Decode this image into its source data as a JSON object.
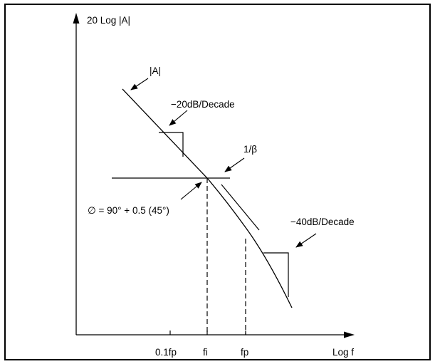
{
  "diagram": {
    "y_axis_label": "20 Log |A|",
    "x_axis_label": "Log f",
    "x_ticks": {
      "tenth_fp": "0.1fp",
      "fi": "fi",
      "fp": "fp"
    },
    "labels": {
      "gain_curve": "|A|",
      "slope_20": "−20dB/Decade",
      "feedback_line": "1/β",
      "phase_margin": "∅ = 90° + 0.5 (45°)",
      "slope_40": "−40dB/Decade"
    }
  }
}
